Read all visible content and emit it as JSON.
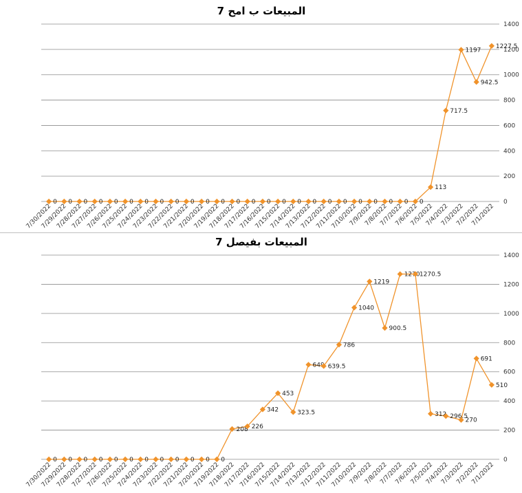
{
  "chart_data": [
    {
      "type": "line",
      "title": "المبيعات ب امح 7",
      "xlabel": "",
      "ylabel": "",
      "ylim": [
        0,
        1400
      ],
      "yticks": [
        0,
        200,
        400,
        600,
        800,
        1000,
        1200,
        1400
      ],
      "y_axis_side": "right",
      "grid": true,
      "legend": "none",
      "color": "#f0932b",
      "categories": [
        "7/30/2022",
        "7/29/2022",
        "7/28/2022",
        "7/27/2022",
        "7/26/2022",
        "7/25/2022",
        "7/24/2022",
        "7/23/2022",
        "7/22/2022",
        "7/21/2022",
        "7/20/2022",
        "7/19/2022",
        "7/18/2022",
        "7/17/2022",
        "7/16/2022",
        "7/15/2022",
        "7/14/2022",
        "7/13/2022",
        "7/12/2022",
        "7/11/2022",
        "7/10/2022",
        "7/9/2022",
        "7/8/2022",
        "7/7/2022",
        "7/6/2022",
        "7/5/2022",
        "7/4/2022",
        "7/3/2022",
        "7/2/2022",
        "7/1/2022"
      ],
      "values": [
        0,
        0,
        0,
        0,
        0,
        0,
        0,
        0,
        0,
        0,
        0,
        0,
        0,
        0,
        0,
        0,
        0,
        0,
        0,
        0,
        0,
        0,
        0,
        0,
        0,
        113,
        717.5,
        1197,
        942.5,
        1227.5
      ],
      "data_labels": [
        "0",
        "0",
        "0",
        "0",
        "0",
        "0",
        "0",
        "0",
        "0",
        "0",
        "0",
        "0",
        "0",
        "0",
        "0",
        "0",
        "0",
        "0",
        "0",
        "0",
        "0",
        "0",
        "0",
        "0",
        "0",
        "113",
        "717.5",
        "1197",
        "942.5",
        "1227.5"
      ]
    },
    {
      "type": "line",
      "title": "المبيعات بفيصل 7",
      "xlabel": "",
      "ylabel": "",
      "ylim": [
        0,
        1400
      ],
      "yticks": [
        0,
        200,
        400,
        600,
        800,
        1000,
        1200,
        1400
      ],
      "y_axis_side": "right",
      "grid": true,
      "legend": "none",
      "color": "#f0932b",
      "categories": [
        "7/30/2022",
        "7/29/2022",
        "7/28/2022",
        "7/27/2022",
        "7/26/2022",
        "7/25/2022",
        "7/24/2022",
        "7/23/2022",
        "7/22/2022",
        "7/21/2022",
        "7/20/2022",
        "7/19/2022",
        "7/18/2022",
        "7/17/2022",
        "7/16/2022",
        "7/15/2022",
        "7/14/2022",
        "7/13/2022",
        "7/12/2022",
        "7/11/2022",
        "7/10/2022",
        "7/9/2022",
        "7/8/2022",
        "7/7/2022",
        "7/6/2022",
        "7/5/2022",
        "7/4/2022",
        "7/3/2022",
        "7/2/2022",
        "7/1/2022"
      ],
      "values": [
        0,
        0,
        0,
        0,
        0,
        0,
        0,
        0,
        0,
        0,
        0,
        0,
        208,
        226,
        342,
        453,
        323.5,
        649,
        639.5,
        786,
        1040,
        1219,
        900.5,
        1270,
        1270.5,
        312,
        296.5,
        270,
        691,
        510
      ],
      "data_labels": [
        "0",
        "0",
        "0",
        "0",
        "0",
        "0",
        "0",
        "0",
        "0",
        "0",
        "0",
        "0",
        "208",
        "226",
        "342",
        "453",
        "323.5",
        "649",
        "639.5",
        "786",
        "1040",
        "1219",
        "900.5",
        "1270",
        "1270.5",
        "312",
        "296.5",
        "270",
        "691",
        "510"
      ]
    }
  ]
}
